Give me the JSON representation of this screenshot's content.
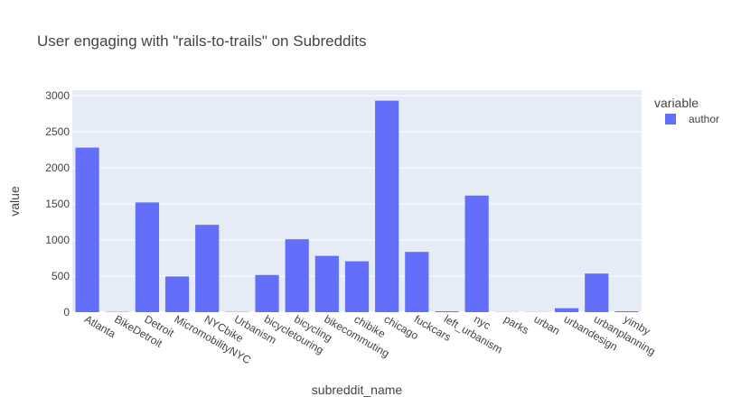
{
  "chart_data": {
    "type": "bar",
    "title": "User engaging with \"rails-to-trails\" on Subreddits",
    "xlabel": "subreddit_name",
    "ylabel": "value",
    "ylim": [
      0,
      3000
    ],
    "yticks": [
      0,
      500,
      1000,
      1500,
      2000,
      2500,
      3000
    ],
    "grid": true,
    "legend": {
      "title": "variable",
      "placement": "top-right"
    },
    "categories": [
      "Atlanta",
      "BikeDetroit",
      "Detroit",
      "MicromobilityNYC",
      "NYCbike",
      "Urbanism",
      "bicycletouring",
      "bicycling",
      "bikecommuting",
      "chibike",
      "chicago",
      "fuckcars",
      "left_urbanism",
      "nyc",
      "parks",
      "urban",
      "urbandesign",
      "urbanplanning",
      "yimby"
    ],
    "series": [
      {
        "name": "author",
        "color": "#636efa",
        "values": [
          2280,
          5,
          1520,
          495,
          1210,
          5,
          515,
          1010,
          780,
          705,
          2930,
          835,
          12,
          1615,
          3,
          3,
          55,
          535,
          12
        ]
      }
    ]
  },
  "colors": {
    "plot_background": "#e5ecf6",
    "gridline": "#ffffff",
    "bar": "#636efa"
  }
}
